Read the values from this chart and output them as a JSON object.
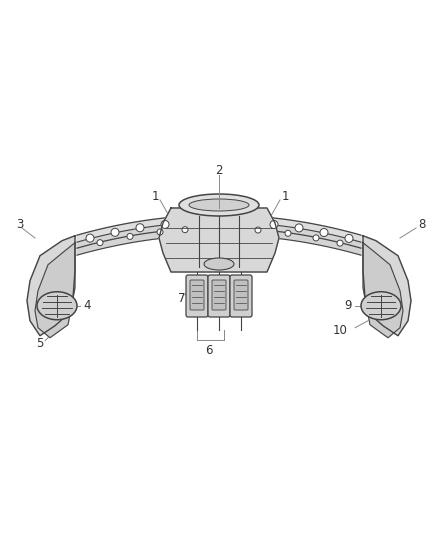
{
  "bg_color": "#ffffff",
  "line_color": "#444444",
  "fill_color": "#e8e8e8",
  "label_color": "#333333",
  "leader_color": "#888888",
  "font_size_labels": 8.5
}
